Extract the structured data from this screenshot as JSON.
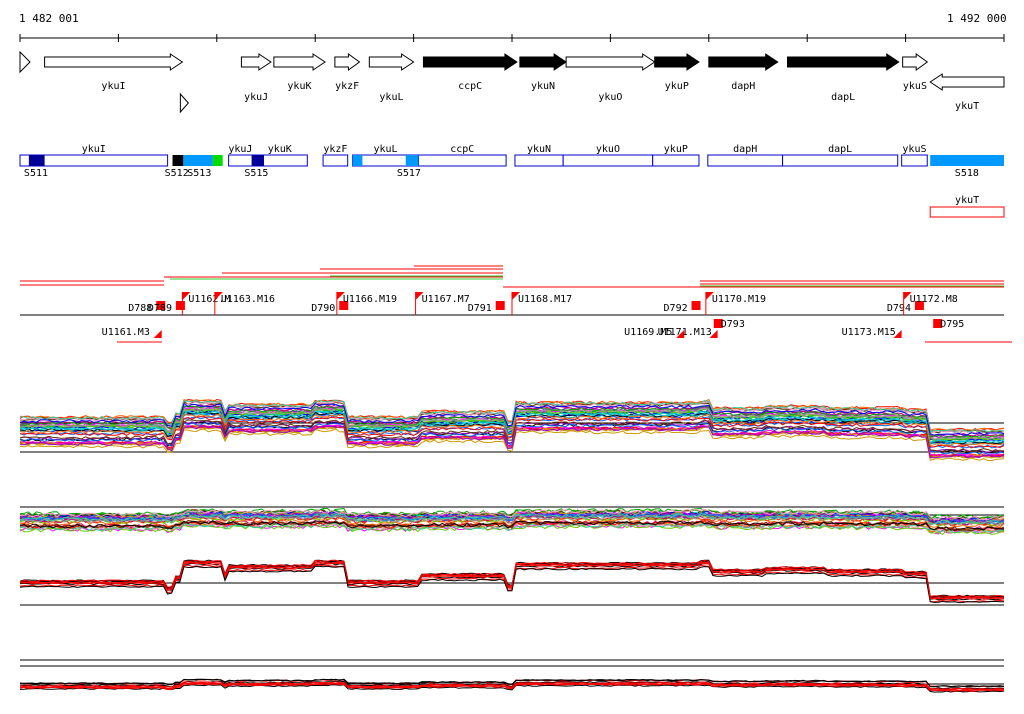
{
  "header": {
    "start_coord": "1 482 001",
    "end_coord": "1 492 000"
  },
  "colors": {
    "arrow_fill": "#000000",
    "block_border": "#0000cc",
    "block_light": "#0099ff",
    "block_dark": "#000099",
    "block_green": "#00dd00",
    "marker_red": "#ff0000",
    "track_black": "#000000"
  },
  "genes": [
    {
      "name": "ykuI",
      "start": 0.025,
      "end": 0.165,
      "strand": "+",
      "filled": false,
      "label_row": "top"
    },
    {
      "name": "",
      "start": 0.165,
      "end": 0.18,
      "strand": "+",
      "filled": false,
      "label_row": "low",
      "small": true
    },
    {
      "name": "ykuJ",
      "start": 0.225,
      "end": 0.255,
      "strand": "+",
      "filled": false,
      "label_row": "low"
    },
    {
      "name": "ykuK",
      "start": 0.258,
      "end": 0.31,
      "strand": "+",
      "filled": false,
      "label_row": "top"
    },
    {
      "name": "ykzF",
      "start": 0.32,
      "end": 0.345,
      "strand": "+",
      "filled": false,
      "label_row": "top"
    },
    {
      "name": "ykuL",
      "start": 0.355,
      "end": 0.4,
      "strand": "+",
      "filled": false,
      "label_row": "low"
    },
    {
      "name": "ccpC",
      "start": 0.41,
      "end": 0.505,
      "strand": "+",
      "filled": true,
      "label_row": "top"
    },
    {
      "name": "ykuN",
      "start": 0.508,
      "end": 0.555,
      "strand": "+",
      "filled": true,
      "label_row": "top"
    },
    {
      "name": "ykuO",
      "start": 0.555,
      "end": 0.645,
      "strand": "+",
      "filled": false,
      "label_row": "low"
    },
    {
      "name": "ykuP",
      "start": 0.645,
      "end": 0.69,
      "strand": "+",
      "filled": true,
      "label_row": "top"
    },
    {
      "name": "dapH",
      "start": 0.7,
      "end": 0.77,
      "strand": "+",
      "filled": true,
      "label_row": "top"
    },
    {
      "name": "dapL",
      "start": 0.78,
      "end": 0.893,
      "strand": "+",
      "filled": true,
      "label_row": "low"
    },
    {
      "name": "ykuS",
      "start": 0.897,
      "end": 0.922,
      "strand": "+",
      "filled": false,
      "label_row": "top"
    },
    {
      "name": "ykuT",
      "start": 0.925,
      "end": 1.0,
      "strand": "-",
      "filled": false,
      "label_row": "low"
    }
  ],
  "blocks": [
    {
      "name": "ykuI",
      "start": 0.0,
      "end": 0.15
    },
    {
      "name": "ykuJ",
      "start": 0.212,
      "end": 0.236
    },
    {
      "name": "ykuK",
      "start": 0.236,
      "end": 0.292
    },
    {
      "name": "ykzF",
      "start": 0.308,
      "end": 0.333
    },
    {
      "name": "ykuL",
      "start": 0.338,
      "end": 0.405
    },
    {
      "name": "ccpC",
      "start": 0.405,
      "end": 0.494
    },
    {
      "name": "ykuN",
      "start": 0.503,
      "end": 0.552
    },
    {
      "name": "ykuO",
      "start": 0.552,
      "end": 0.643
    },
    {
      "name": "ykuP",
      "start": 0.643,
      "end": 0.69
    },
    {
      "name": "dapH",
      "start": 0.699,
      "end": 0.775
    },
    {
      "name": "dapL",
      "start": 0.775,
      "end": 0.892
    },
    {
      "name": "ykuS",
      "start": 0.896,
      "end": 0.922
    }
  ],
  "block_fills": [
    {
      "start": 0.009,
      "end": 0.025,
      "color": "dark"
    },
    {
      "start": 0.155,
      "end": 0.166,
      "color": "black"
    },
    {
      "start": 0.166,
      "end": 0.196,
      "color": "light"
    },
    {
      "start": 0.196,
      "end": 0.206,
      "color": "green"
    },
    {
      "start": 0.236,
      "end": 0.248,
      "color": "dark"
    },
    {
      "start": 0.338,
      "end": 0.348,
      "color": "light"
    },
    {
      "start": 0.392,
      "end": 0.405,
      "color": "light"
    },
    {
      "start": 0.925,
      "end": 1.0,
      "color": "light"
    }
  ],
  "segments": [
    {
      "label": "S511",
      "pos": 0.004
    },
    {
      "label": "S512",
      "pos": 0.147
    },
    {
      "label": "S513",
      "pos": 0.17
    },
    {
      "label": "S515",
      "pos": 0.228
    },
    {
      "label": "S517",
      "pos": 0.383
    },
    {
      "label": "S518",
      "pos": 0.95
    }
  ],
  "ykuT_box": {
    "label": "ykuT",
    "start": 0.925,
    "end": 1.0
  },
  "markers_upper": [
    {
      "label": "D788",
      "pos": 0.11
    },
    {
      "label": "D789",
      "pos": 0.13
    },
    {
      "label": "U1162.M",
      "pos": 0.165
    },
    {
      "label": "U1163.M16",
      "pos": 0.198
    },
    {
      "label": "D790",
      "pos": 0.296
    },
    {
      "label": "U1166.M19",
      "pos": 0.322
    },
    {
      "label": "U1167.M7",
      "pos": 0.402
    },
    {
      "label": "D791",
      "pos": 0.455
    },
    {
      "label": "U1168.M17",
      "pos": 0.5
    },
    {
      "label": "D792",
      "pos": 0.654
    },
    {
      "label": "U1170.M19",
      "pos": 0.697
    },
    {
      "label": "D794",
      "pos": 0.881
    },
    {
      "label": "U1172.M8",
      "pos": 0.898
    }
  ],
  "markers_lower": [
    {
      "label": "U1161.M3",
      "pos": 0.083
    },
    {
      "label": "U1169.M5",
      "pos": 0.614
    },
    {
      "label": "U1171.M13",
      "pos": 0.648
    },
    {
      "label": "D793",
      "pos": 0.702
    },
    {
      "label": "D795",
      "pos": 0.925
    },
    {
      "label": "U1173.M15",
      "pos": 0.835
    }
  ]
}
